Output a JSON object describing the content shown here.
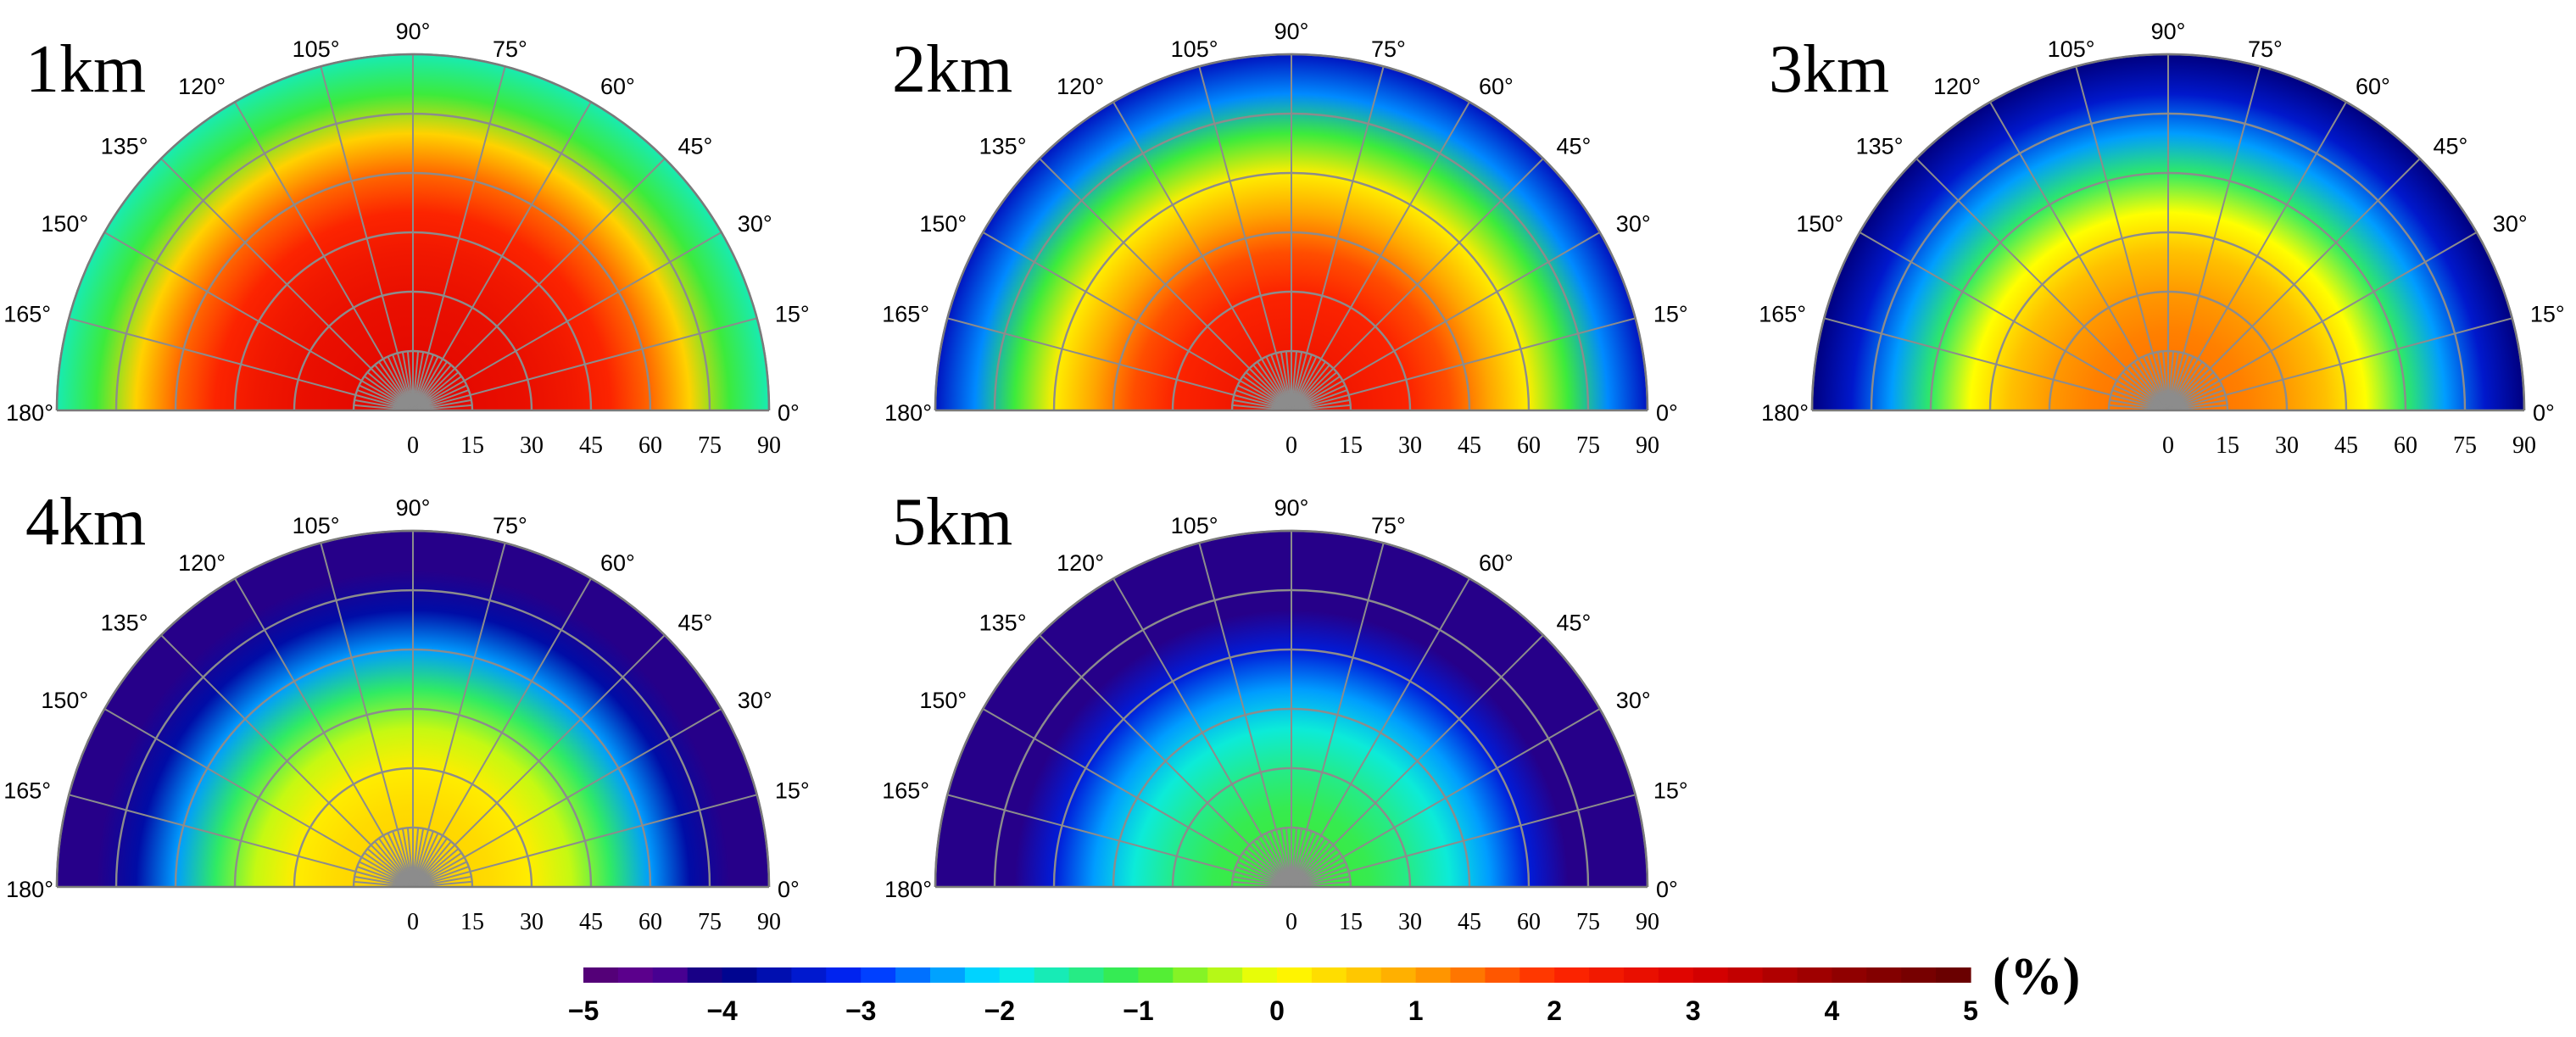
{
  "figure": {
    "colorbar": {
      "ticks": [
        "−5",
        "−4",
        "−3",
        "−2",
        "−1",
        "0",
        "1",
        "2",
        "3",
        "4",
        "5"
      ],
      "unit": "(%)"
    },
    "panels": [
      {
        "label": "1km"
      },
      {
        "label": "2km"
      },
      {
        "label": "3km"
      },
      {
        "label": "4km"
      },
      {
        "label": "5km"
      }
    ]
  },
  "chart_data": [
    {
      "type": "heatmap",
      "title": "1km",
      "projection": "polar-half",
      "angular_ticks": [
        "0°",
        "15°",
        "30°",
        "45°",
        "60°",
        "75°",
        "90°",
        "105°",
        "120°",
        "135°",
        "150°",
        "165°",
        "180°"
      ],
      "radial_ticks": [
        "0",
        "15",
        "30",
        "45",
        "60",
        "75",
        "90"
      ],
      "rlim": [
        0,
        90
      ],
      "clim": [
        -5,
        5
      ],
      "colorbar_unit": "(%)",
      "radial_profile": {
        "r": [
          0,
          10,
          20,
          30,
          40,
          50,
          60,
          70,
          80,
          90
        ],
        "value": [
          2.8,
          2.8,
          2.7,
          2.6,
          2.4,
          2.1,
          1.5,
          0.5,
          -1.0,
          -1.6
        ]
      }
    },
    {
      "type": "heatmap",
      "title": "2km",
      "projection": "polar-half",
      "angular_ticks": [
        "0°",
        "15°",
        "30°",
        "45°",
        "60°",
        "75°",
        "90°",
        "105°",
        "120°",
        "135°",
        "150°",
        "165°",
        "180°"
      ],
      "radial_ticks": [
        "0",
        "15",
        "30",
        "45",
        "60",
        "75",
        "90"
      ],
      "rlim": [
        0,
        90
      ],
      "clim": [
        -5,
        5
      ],
      "colorbar_unit": "(%)",
      "radial_profile": {
        "r": [
          0,
          10,
          20,
          30,
          40,
          50,
          60,
          70,
          80,
          90
        ],
        "value": [
          2.5,
          2.5,
          2.3,
          2.1,
          1.7,
          1.0,
          0.2,
          -1.0,
          -2.5,
          -3.5
        ]
      }
    },
    {
      "type": "heatmap",
      "title": "3km",
      "projection": "polar-half",
      "angular_ticks": [
        "0°",
        "15°",
        "30°",
        "45°",
        "60°",
        "75°",
        "90°",
        "105°",
        "120°",
        "135°",
        "150°",
        "165°",
        "180°"
      ],
      "radial_ticks": [
        "0",
        "15",
        "30",
        "45",
        "60",
        "75",
        "90"
      ],
      "rlim": [
        0,
        90
      ],
      "clim": [
        -5,
        5
      ],
      "colorbar_unit": "(%)",
      "radial_profile": {
        "r": [
          0,
          10,
          20,
          30,
          40,
          50,
          60,
          70,
          80,
          90
        ],
        "value": [
          1.4,
          1.4,
          1.3,
          1.1,
          0.7,
          0.0,
          -1.2,
          -2.4,
          -3.4,
          -4.0
        ]
      }
    },
    {
      "type": "heatmap",
      "title": "4km",
      "projection": "polar-half",
      "angular_ticks": [
        "0°",
        "15°",
        "30°",
        "45°",
        "60°",
        "75°",
        "90°",
        "105°",
        "120°",
        "135°",
        "150°",
        "165°",
        "180°"
      ],
      "radial_ticks": [
        "0",
        "15",
        "30",
        "45",
        "60",
        "75",
        "90"
      ],
      "rlim": [
        0,
        90
      ],
      "clim": [
        -5,
        5
      ],
      "colorbar_unit": "(%)",
      "radial_profile": {
        "r": [
          0,
          10,
          20,
          30,
          40,
          50,
          60,
          70,
          80,
          90
        ],
        "value": [
          0.5,
          0.5,
          0.4,
          0.2,
          -0.3,
          -1.2,
          -2.4,
          -3.7,
          -4.2,
          -4.2
        ]
      }
    },
    {
      "type": "heatmap",
      "title": "5km",
      "projection": "polar-half",
      "angular_ticks": [
        "0°",
        "15°",
        "30°",
        "45°",
        "60°",
        "75°",
        "90°",
        "105°",
        "120°",
        "135°",
        "150°",
        "165°",
        "180°"
      ],
      "radial_ticks": [
        "0",
        "15",
        "30",
        "45",
        "60",
        "75",
        "90"
      ],
      "rlim": [
        0,
        90
      ],
      "clim": [
        -5,
        5
      ],
      "colorbar_unit": "(%)",
      "radial_profile": {
        "r": [
          0,
          10,
          20,
          30,
          40,
          50,
          60,
          70,
          80,
          90
        ],
        "value": [
          -1.0,
          -1.0,
          -1.1,
          -1.4,
          -1.8,
          -2.4,
          -3.3,
          -4.2,
          -4.2,
          -4.2
        ]
      }
    }
  ]
}
